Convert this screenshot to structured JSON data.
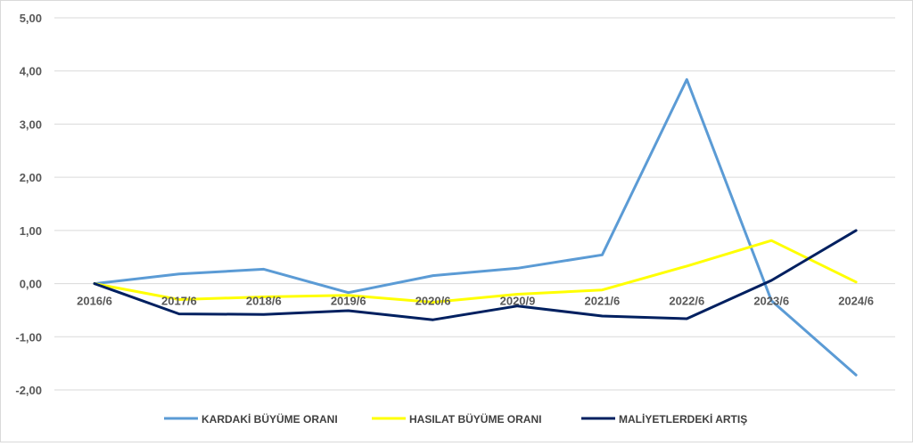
{
  "chart_data": {
    "type": "line",
    "categories": [
      "2016/6",
      "2017/6",
      "2018/6",
      "2019/6",
      "2020/6",
      "2020/9",
      "2021/6",
      "2022/6",
      "2023/6",
      "2024/6"
    ],
    "series": [
      {
        "name": "KARDAKİ BÜYÜME ORANI",
        "color": "#5b9bd5",
        "values": [
          0.0,
          0.18,
          0.27,
          -0.17,
          0.15,
          0.29,
          0.54,
          3.84,
          -0.32,
          -1.72
        ]
      },
      {
        "name": "HASILAT BÜYÜME ORANI",
        "color": "#ffff00",
        "values": [
          0.0,
          -0.3,
          -0.25,
          -0.22,
          -0.35,
          -0.2,
          -0.12,
          0.33,
          0.81,
          0.03
        ]
      },
      {
        "name": "MALİYETLERDEKİ ARTIŞ",
        "color": "#002060",
        "values": [
          0.0,
          -0.57,
          -0.58,
          -0.51,
          -0.68,
          -0.42,
          -0.61,
          -0.66,
          0.06,
          1.0
        ]
      }
    ],
    "yticks": [
      "5,00",
      "4,00",
      "3,00",
      "2,00",
      "1,00",
      "0,00",
      "-1,00",
      "-2,00"
    ],
    "ylim": [
      -2,
      5
    ],
    "grid": true,
    "legend": "bottom",
    "title": "",
    "xlabel": "",
    "ylabel": ""
  }
}
